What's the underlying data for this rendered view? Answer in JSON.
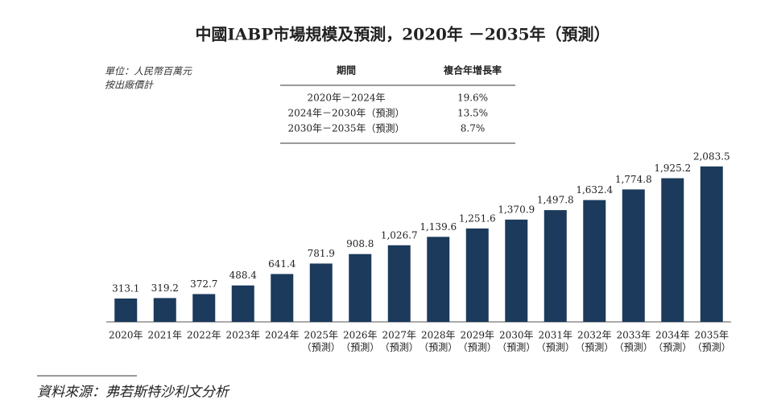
{
  "chart_data": {
    "type": "bar",
    "title": "中國IABP市場規模及預測，2020年 －2035年（預測）",
    "unit_note": [
      "單位：人民幣百萬元",
      "按出廠價計"
    ],
    "cagr_table": {
      "header": [
        "期間",
        "複合年增長率"
      ],
      "rows": [
        [
          "2020年－2024年",
          "19.6%"
        ],
        [
          "2024年－2030年（預測）",
          "13.5%"
        ],
        [
          "2030年－2035年（預測）",
          "8.7%"
        ]
      ]
    },
    "categories": [
      [
        "2020年"
      ],
      [
        "2021年"
      ],
      [
        "2022年"
      ],
      [
        "2023年"
      ],
      [
        "2024年"
      ],
      [
        "2025年",
        "（預測）"
      ],
      [
        "2026年",
        "（預測）"
      ],
      [
        "2027年",
        "（預測）"
      ],
      [
        "2028年",
        "（預測）"
      ],
      [
        "2029年",
        "（預測）"
      ],
      [
        "2030年",
        "（預測）"
      ],
      [
        "2031年",
        "（預測）"
      ],
      [
        "2032年",
        "（預測）"
      ],
      [
        "2033年",
        "（預測）"
      ],
      [
        "2034年",
        "（預測）"
      ],
      [
        "2035年",
        "（預測）"
      ]
    ],
    "values": [
      313.1,
      319.2,
      372.7,
      488.4,
      641.4,
      781.9,
      908.8,
      1026.7,
      1139.6,
      1251.6,
      1370.9,
      1497.8,
      1632.4,
      1774.8,
      1925.2,
      2083.5
    ],
    "value_labels": [
      "313.1",
      "319.2",
      "372.7",
      "488.4",
      "641.4",
      "781.9",
      "908.8",
      "1,026.7",
      "1,139.6",
      "1,251.6",
      "1,370.9",
      "1,497.8",
      "1,632.4",
      "1,774.8",
      "1,925.2",
      "2,083.5"
    ],
    "color": "#1b3a5c",
    "ylim": [
      0,
      2200
    ],
    "source": "資料來源：弗若斯特沙利文分析"
  }
}
